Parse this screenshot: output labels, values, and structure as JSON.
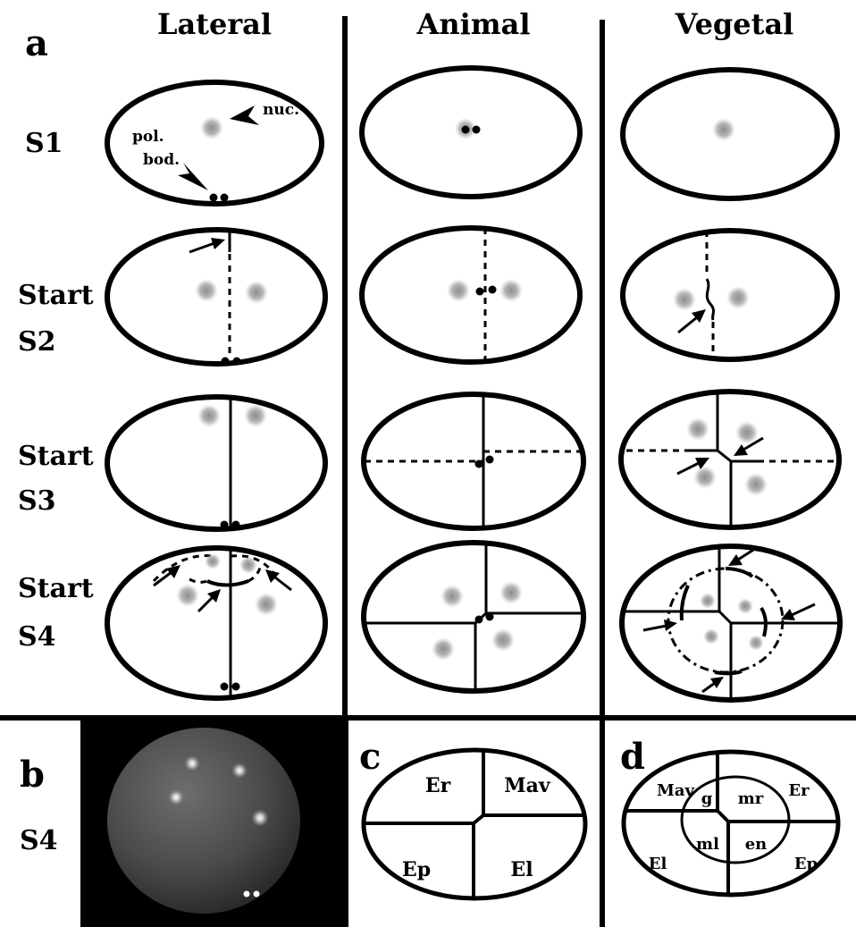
{
  "column_headers": {
    "lateral": "Lateral",
    "animal": "Animal",
    "vegetal": "Vegetal"
  },
  "panel_letters": {
    "a": "a",
    "b": "b",
    "c": "c",
    "d": "d"
  },
  "row_labels": {
    "s1": "S1",
    "s2_line1": "Start",
    "s2_line2": "S2",
    "s3_line1": "Start",
    "s3_line2": "S3",
    "s4_line1": "Start",
    "s4_line2": "S4",
    "b_stage": "S4"
  },
  "annotations": {
    "nuc": "nuc.",
    "pol": "pol.",
    "bod": "bod."
  },
  "panel_c_regions": {
    "top_left": "Er",
    "top_right": "Mav",
    "bottom_left": "Ep",
    "bottom_right": "El"
  },
  "panel_d_regions": {
    "outer_top_left": "Mav",
    "outer_top_right": "Er",
    "outer_bottom_left": "El",
    "outer_bottom_right": "Ep",
    "inner_g": "g",
    "inner_mr": "mr",
    "inner_ml": "ml",
    "inner_en": "en"
  },
  "colors": {
    "ink": "#000000",
    "nucleus": "#9a9a9a",
    "photo_background": "#000000"
  }
}
